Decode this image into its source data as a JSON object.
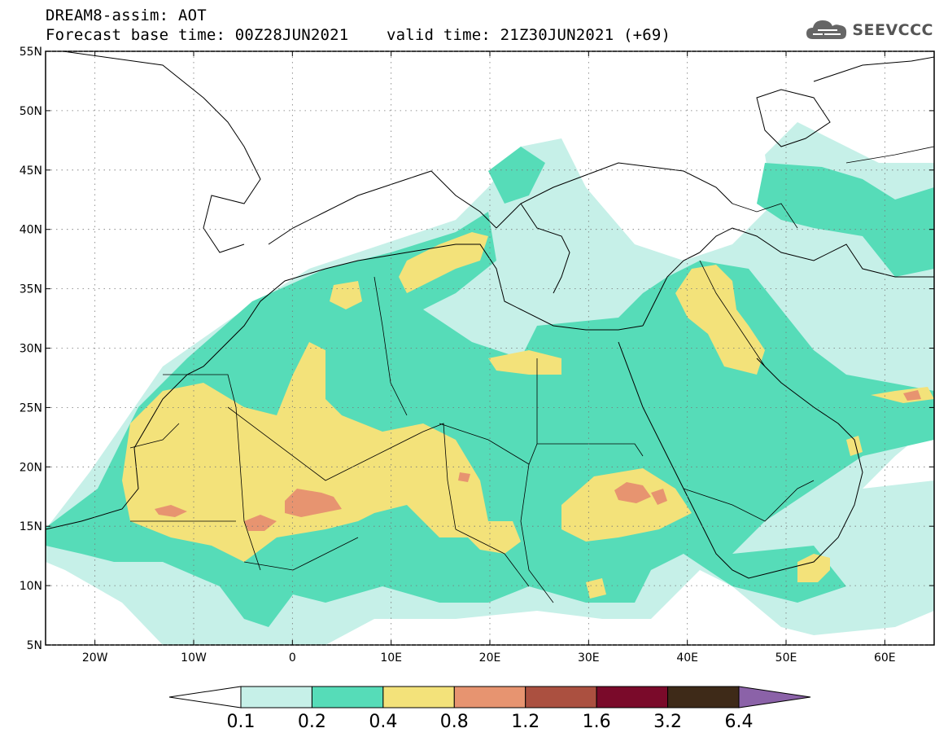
{
  "header": {
    "line1": "DREAM8-assim: AOT",
    "line2": "Forecast base time: 00Z28JUN2021    valid time: 21Z30JUN2021 (+69)"
  },
  "logo": {
    "text": "SEEVCCC",
    "icon": "cloud-icon"
  },
  "map": {
    "lon_range": [
      -25,
      65
    ],
    "lat_range": [
      5,
      55
    ],
    "lon_ticks": [
      "20W",
      "10W",
      "0",
      "10E",
      "20E",
      "30E",
      "40E",
      "50E",
      "60E"
    ],
    "lat_ticks": [
      "55N",
      "50N",
      "45N",
      "40N",
      "35N",
      "30N",
      "25N",
      "20N",
      "15N",
      "10N",
      "5N"
    ],
    "grid": true
  },
  "colorbar": {
    "labels": [
      "0.1",
      "0.2",
      "0.4",
      "0.8",
      "1.2",
      "1.6",
      "3.2",
      "6.4"
    ],
    "colors": [
      "#ffffff",
      "#c6f0e8",
      "#56dcb8",
      "#f3e27a",
      "#e79470",
      "#ab5040",
      "#7a0a2a",
      "#3e2a18",
      "#8b62a8"
    ]
  }
}
